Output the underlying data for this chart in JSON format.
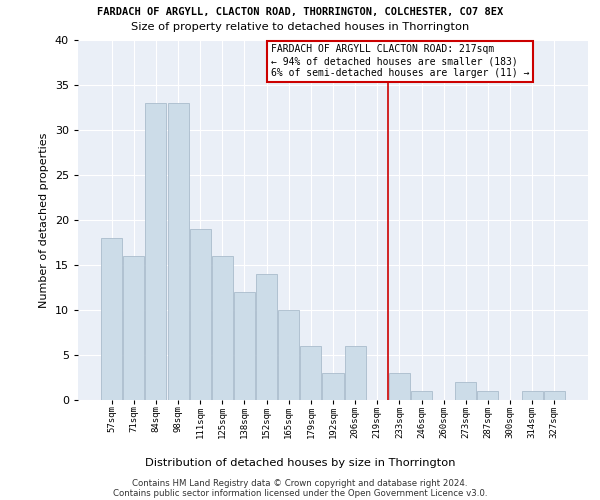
{
  "title1": "FARDACH OF ARGYLL, CLACTON ROAD, THORRINGTON, COLCHESTER, CO7 8EX",
  "title2": "Size of property relative to detached houses in Thorrington",
  "xlabel": "Distribution of detached houses by size in Thorrington",
  "ylabel": "Number of detached properties",
  "categories": [
    "57sqm",
    "71sqm",
    "84sqm",
    "98sqm",
    "111sqm",
    "125sqm",
    "138sqm",
    "152sqm",
    "165sqm",
    "179sqm",
    "192sqm",
    "206sqm",
    "219sqm",
    "233sqm",
    "246sqm",
    "260sqm",
    "273sqm",
    "287sqm",
    "300sqm",
    "314sqm",
    "327sqm"
  ],
  "values": [
    18,
    16,
    33,
    33,
    19,
    16,
    12,
    14,
    10,
    6,
    3,
    6,
    0,
    3,
    1,
    0,
    2,
    1,
    0,
    1,
    1
  ],
  "bar_color": "#ccdce8",
  "bar_edge_color": "#aabccc",
  "vline_x_index": 12.5,
  "vline_color": "#cc0000",
  "annotation_text": "FARDACH OF ARGYLL CLACTON ROAD: 217sqm\n← 94% of detached houses are smaller (183)\n6% of semi-detached houses are larger (11) →",
  "ylim": [
    0,
    40
  ],
  "yticks": [
    0,
    5,
    10,
    15,
    20,
    25,
    30,
    35,
    40
  ],
  "bg_color": "#eaeff7",
  "footer1": "Contains HM Land Registry data © Crown copyright and database right 2024.",
  "footer2": "Contains public sector information licensed under the Open Government Licence v3.0."
}
